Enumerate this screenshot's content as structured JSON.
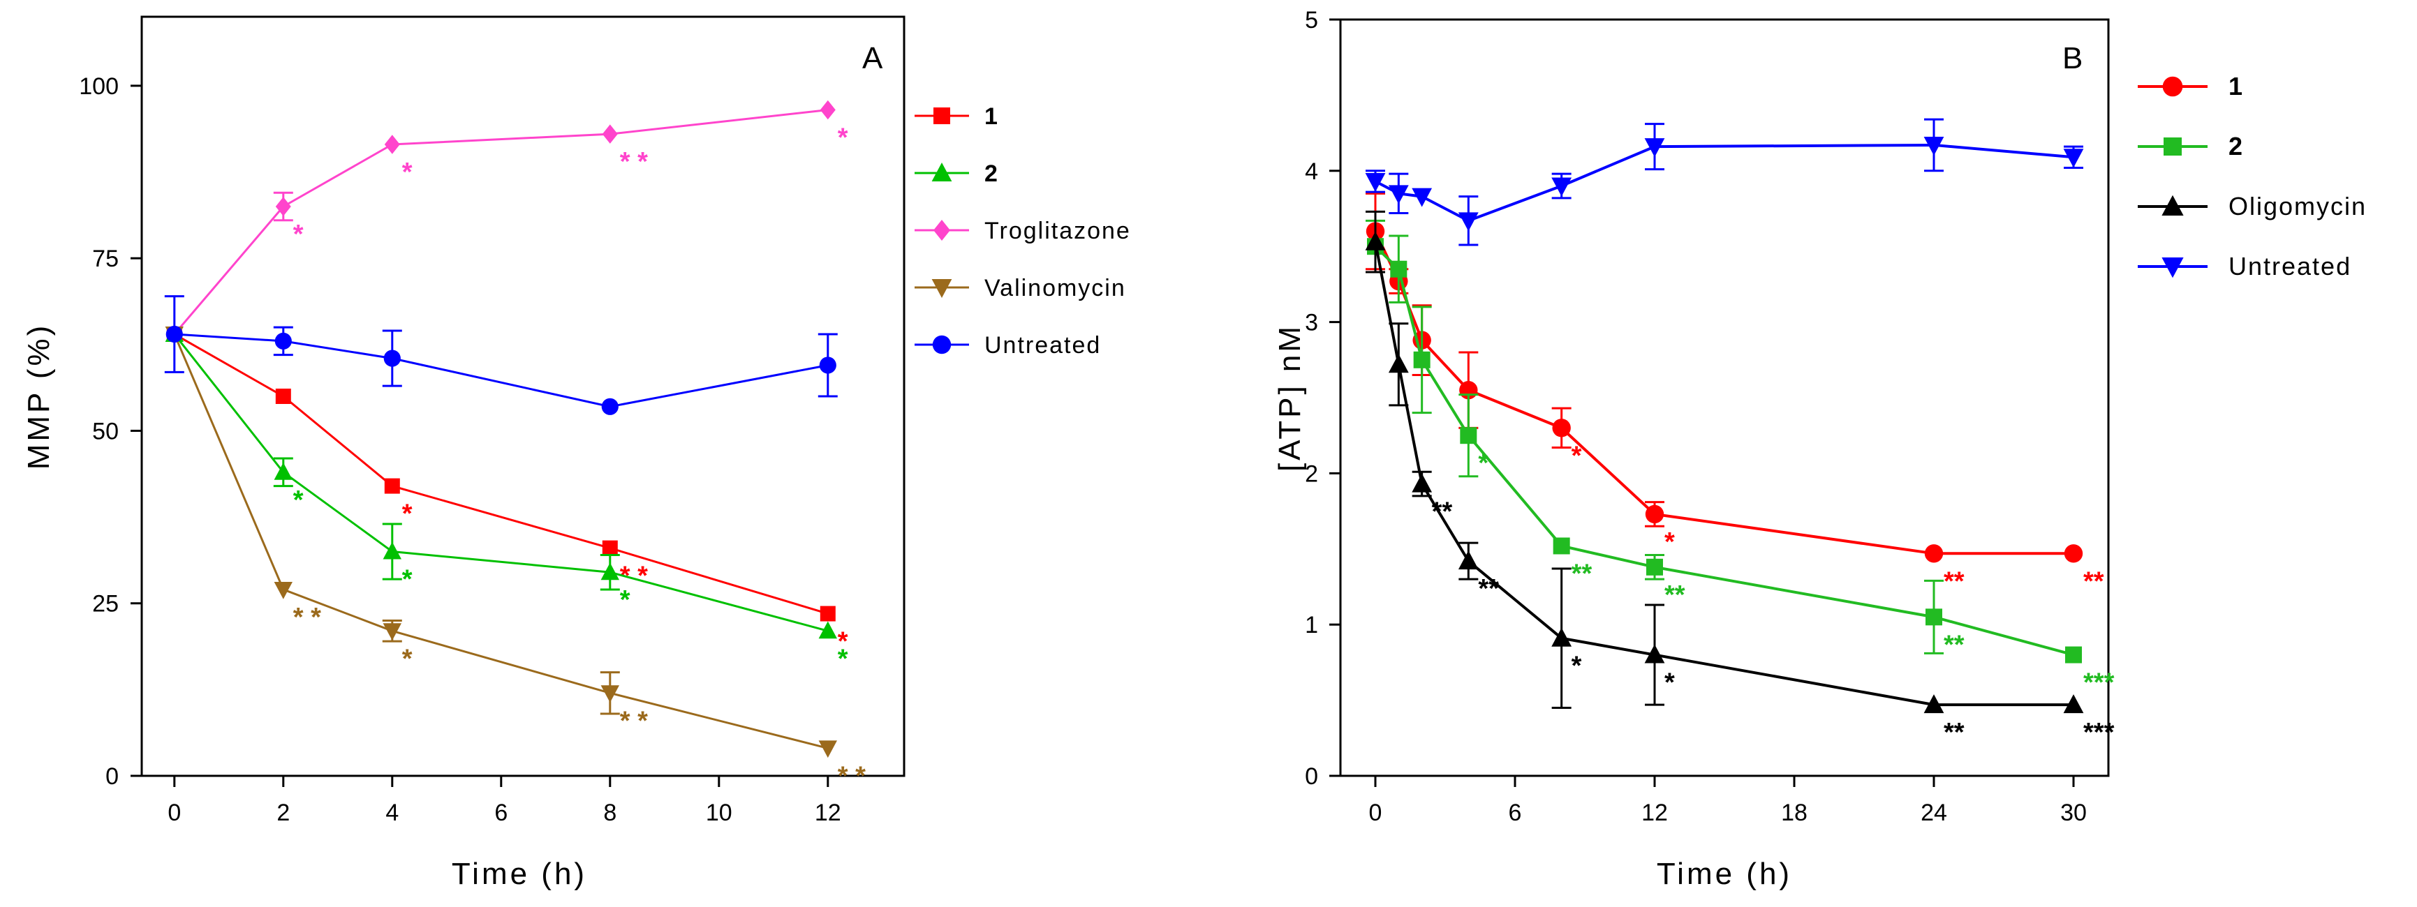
{
  "chart_data": [
    {
      "type": "line",
      "panel_label": "A",
      "xlabel": "Time (h)",
      "ylabel": "MMP (%)",
      "xlim": [
        -0.6,
        13.4
      ],
      "ylim": [
        0,
        110
      ],
      "xticks": [
        "0",
        "2",
        "4",
        "6",
        "8",
        "10",
        "12"
      ],
      "yticks": [
        "0",
        "25",
        "50",
        "75",
        "100"
      ],
      "series": [
        {
          "name": "1",
          "color": "#ff0000",
          "marker": "square",
          "points": [
            {
              "x": 0,
              "y": 64,
              "err": 0,
              "sig": ""
            },
            {
              "x": 2,
              "y": 55,
              "err": 0,
              "sig": ""
            },
            {
              "x": 4,
              "y": 42,
              "err": 0,
              "sig": "*"
            },
            {
              "x": 8,
              "y": 33,
              "err": 0,
              "sig": "* *"
            },
            {
              "x": 12,
              "y": 23.5,
              "err": 0,
              "sig": "*"
            }
          ]
        },
        {
          "name": "2",
          "color": "#00c000",
          "marker": "triangle-up",
          "points": [
            {
              "x": 0,
              "y": 64,
              "err": 0,
              "sig": ""
            },
            {
              "x": 2,
              "y": 44,
              "err": 2,
              "sig": "*"
            },
            {
              "x": 4,
              "y": 32.5,
              "err": 4,
              "sig": "*"
            },
            {
              "x": 8,
              "y": 29.5,
              "err": 2.5,
              "sig": "*"
            },
            {
              "x": 12,
              "y": 21,
              "err": 0,
              "sig": "*"
            }
          ]
        },
        {
          "name": "Troglitazone",
          "color": "#ff44cc",
          "marker": "diamond",
          "points": [
            {
              "x": 0,
              "y": 64,
              "err": 0,
              "sig": ""
            },
            {
              "x": 2,
              "y": 82.5,
              "err": 2,
              "sig": "*"
            },
            {
              "x": 4,
              "y": 91.5,
              "err": 0,
              "sig": "*"
            },
            {
              "x": 8,
              "y": 93,
              "err": 0,
              "sig": "* *"
            },
            {
              "x": 12,
              "y": 96.5,
              "err": 0,
              "sig": "*"
            }
          ]
        },
        {
          "name": "Valinomycin",
          "color": "#9b6a1c",
          "marker": "triangle-down",
          "points": [
            {
              "x": 0,
              "y": 64,
              "err": 0,
              "sig": ""
            },
            {
              "x": 2,
              "y": 27,
              "err": 0,
              "sig": "* *"
            },
            {
              "x": 4,
              "y": 21,
              "err": 1.5,
              "sig": "*"
            },
            {
              "x": 8,
              "y": 12,
              "err": 3,
              "sig": "* *"
            },
            {
              "x": 12,
              "y": 4,
              "err": 0,
              "sig": "* *"
            }
          ]
        },
        {
          "name": "Untreated",
          "color": "#0000ff",
          "marker": "circle",
          "points": [
            {
              "x": 0,
              "y": 64,
              "err": 5.5,
              "sig": ""
            },
            {
              "x": 2,
              "y": 63,
              "err": 2,
              "sig": ""
            },
            {
              "x": 4,
              "y": 60.5,
              "err": 4,
              "sig": ""
            },
            {
              "x": 8,
              "y": 53.5,
              "err": 0,
              "sig": ""
            },
            {
              "x": 12,
              "y": 59.5,
              "err": 4.5,
              "sig": ""
            }
          ]
        }
      ]
    },
    {
      "type": "line",
      "panel_label": "B",
      "xlabel": "Time (h)",
      "ylabel": "[ATP] nM",
      "xlim": [
        -1.5,
        31.5
      ],
      "ylim": [
        0,
        5
      ],
      "xticks": [
        "0",
        "6",
        "12",
        "18",
        "24",
        "30"
      ],
      "yticks": [
        "0",
        "1",
        "2",
        "3",
        "4",
        "5"
      ],
      "series": [
        {
          "name": "1",
          "color": "#ff0000",
          "marker": "circle",
          "points": [
            {
              "x": 0,
              "y": 3.6,
              "err": 0.25,
              "sig": ""
            },
            {
              "x": 1,
              "y": 3.27,
              "err": 0.08,
              "sig": ""
            },
            {
              "x": 2,
              "y": 2.88,
              "err": 0.23,
              "sig": ""
            },
            {
              "x": 4,
              "y": 2.55,
              "err": 0.25,
              "sig": ""
            },
            {
              "x": 8,
              "y": 2.3,
              "err": 0.13,
              "sig": "*"
            },
            {
              "x": 12,
              "y": 1.73,
              "err": 0.08,
              "sig": "*"
            },
            {
              "x": 24,
              "y": 1.47,
              "err": 0,
              "sig": "**"
            },
            {
              "x": 30,
              "y": 1.47,
              "err": 0,
              "sig": "**"
            }
          ]
        },
        {
          "name": "2",
          "color": "#22bb22",
          "marker": "square",
          "points": [
            {
              "x": 0,
              "y": 3.5,
              "err": 0.17,
              "sig": ""
            },
            {
              "x": 1,
              "y": 3.35,
              "err": 0.22,
              "sig": ""
            },
            {
              "x": 2,
              "y": 2.75,
              "err": 0.35,
              "sig": ""
            },
            {
              "x": 4,
              "y": 2.25,
              "err": 0.27,
              "sig": "*"
            },
            {
              "x": 8,
              "y": 1.52,
              "err": 0,
              "sig": "**"
            },
            {
              "x": 12,
              "y": 1.38,
              "err": 0.08,
              "sig": "**"
            },
            {
              "x": 24,
              "y": 1.05,
              "err": 0.24,
              "sig": "**"
            },
            {
              "x": 30,
              "y": 0.8,
              "err": 0,
              "sig": "***"
            }
          ]
        },
        {
          "name": "Oligomycin",
          "color": "#000000",
          "marker": "triangle-up",
          "points": [
            {
              "x": 0,
              "y": 3.53,
              "err": 0.2,
              "sig": ""
            },
            {
              "x": 1,
              "y": 2.72,
              "err": 0.27,
              "sig": ""
            },
            {
              "x": 2,
              "y": 1.93,
              "err": 0.08,
              "sig": "**"
            },
            {
              "x": 4,
              "y": 1.42,
              "err": 0.12,
              "sig": "**"
            },
            {
              "x": 8,
              "y": 0.91,
              "err": 0.46,
              "sig": "*"
            },
            {
              "x": 12,
              "y": 0.8,
              "err": 0.33,
              "sig": "*"
            },
            {
              "x": 24,
              "y": 0.47,
              "err": 0,
              "sig": "**"
            },
            {
              "x": 30,
              "y": 0.47,
              "err": 0,
              "sig": "***"
            }
          ]
        },
        {
          "name": "Untreated",
          "color": "#0000ff",
          "marker": "triangle-down",
          "points": [
            {
              "x": 0,
              "y": 3.93,
              "err": 0.07,
              "sig": ""
            },
            {
              "x": 1,
              "y": 3.85,
              "err": 0.13,
              "sig": ""
            },
            {
              "x": 2,
              "y": 3.83,
              "err": 0,
              "sig": ""
            },
            {
              "x": 4,
              "y": 3.67,
              "err": 0.16,
              "sig": ""
            },
            {
              "x": 8,
              "y": 3.9,
              "err": 0.08,
              "sig": ""
            },
            {
              "x": 12,
              "y": 4.16,
              "err": 0.15,
              "sig": ""
            },
            {
              "x": 24,
              "y": 4.17,
              "err": 0.17,
              "sig": ""
            },
            {
              "x": 30,
              "y": 4.09,
              "err": 0.07,
              "sig": ""
            }
          ]
        }
      ]
    }
  ]
}
